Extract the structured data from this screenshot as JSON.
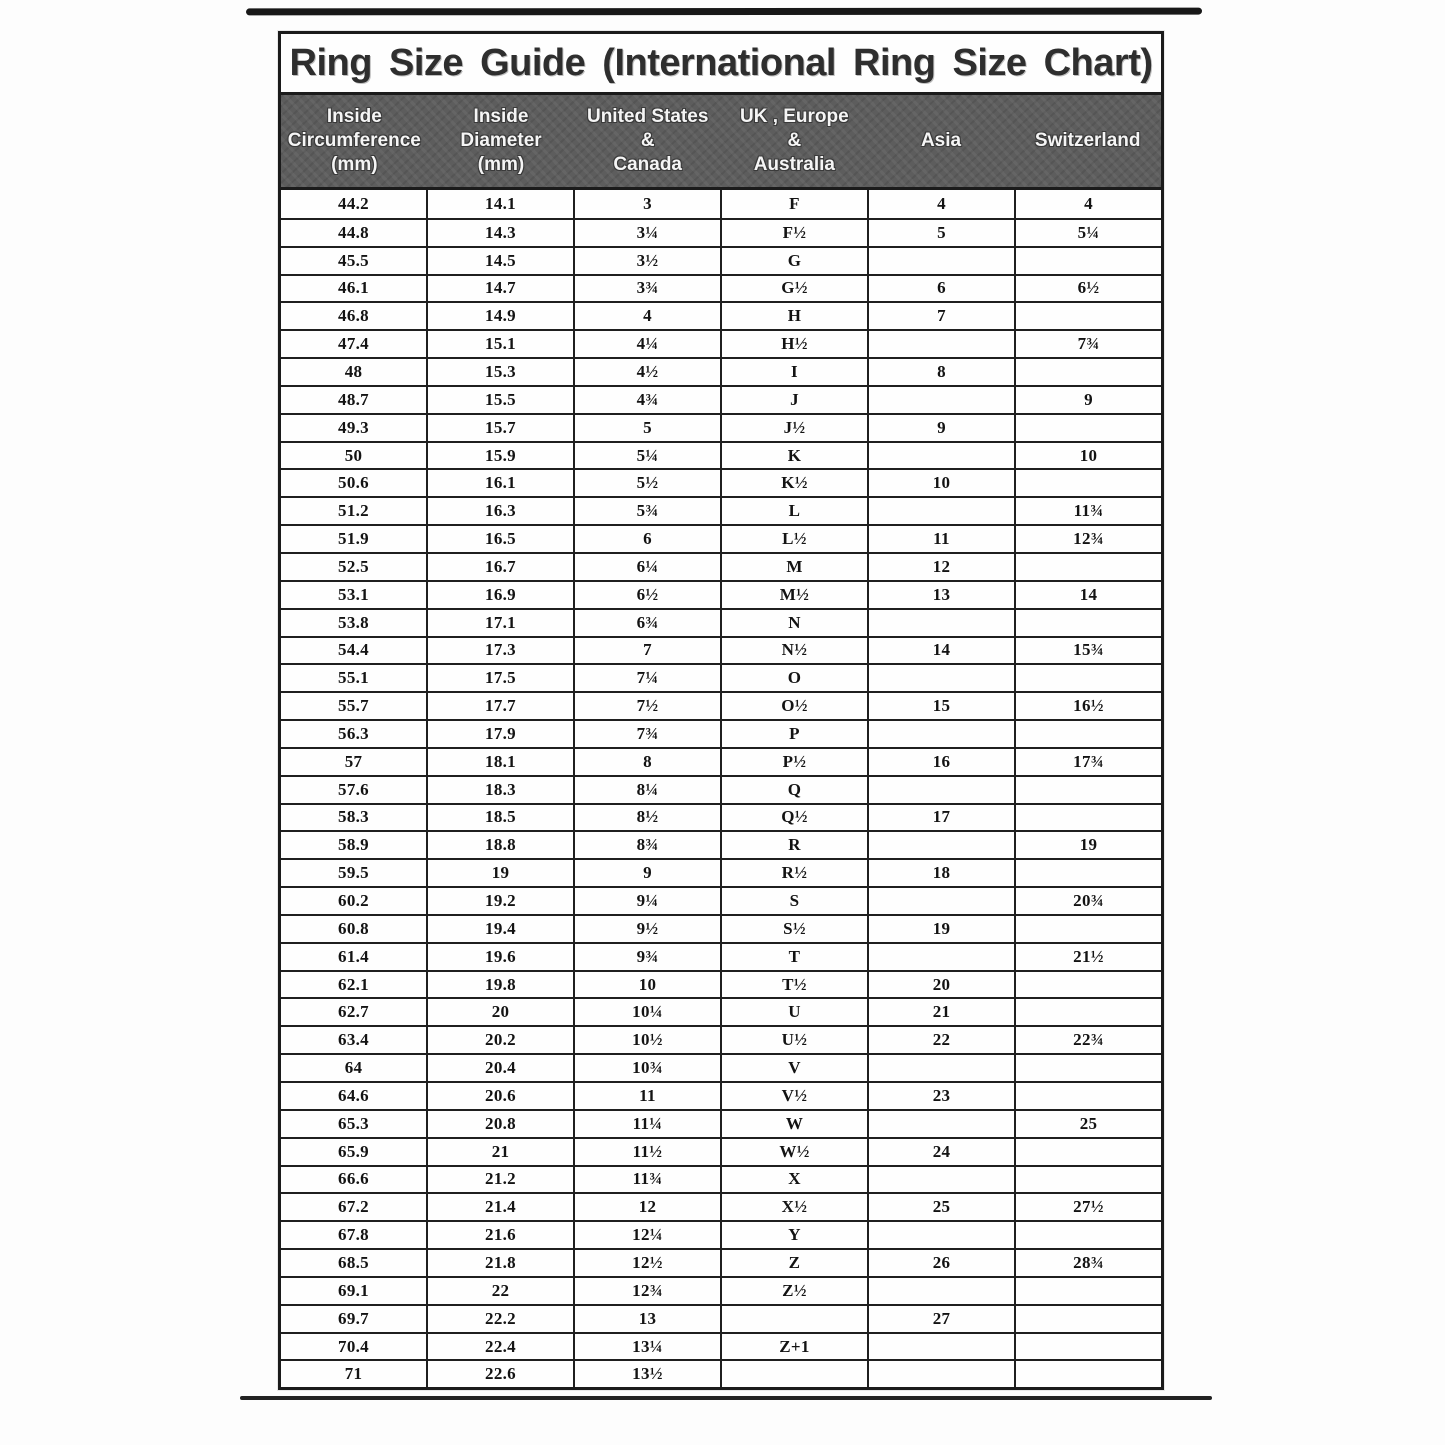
{
  "title": "Ring Size Guide (International Ring Size Chart)",
  "table": {
    "headers": [
      "Inside\nCircumference\n(mm)",
      "Inside\nDiameter\n(mm)",
      "United States\n&\nCanada",
      "UK , Europe\n&\nAustralia",
      "Asia",
      "Switzerland"
    ],
    "rows": [
      [
        "44.2",
        "14.1",
        "3",
        "F",
        "4",
        "4"
      ],
      [
        "44.8",
        "14.3",
        "3¼",
        "F½",
        "5",
        "5¼"
      ],
      [
        "45.5",
        "14.5",
        "3½",
        "G",
        "",
        ""
      ],
      [
        "46.1",
        "14.7",
        "3¾",
        "G½",
        "6",
        "6½"
      ],
      [
        "46.8",
        "14.9",
        "4",
        "H",
        "7",
        ""
      ],
      [
        "47.4",
        "15.1",
        "4¼",
        "H½",
        "",
        "7¾"
      ],
      [
        "48",
        "15.3",
        "4½",
        "I",
        "8",
        ""
      ],
      [
        "48.7",
        "15.5",
        "4¾",
        "J",
        "",
        "9"
      ],
      [
        "49.3",
        "15.7",
        "5",
        "J½",
        "9",
        ""
      ],
      [
        "50",
        "15.9",
        "5¼",
        "K",
        "",
        "10"
      ],
      [
        "50.6",
        "16.1",
        "5½",
        "K½",
        "10",
        ""
      ],
      [
        "51.2",
        "16.3",
        "5¾",
        "L",
        "",
        "11¾"
      ],
      [
        "51.9",
        "16.5",
        "6",
        "L½",
        "11",
        "12¾"
      ],
      [
        "52.5",
        "16.7",
        "6¼",
        "M",
        "12",
        ""
      ],
      [
        "53.1",
        "16.9",
        "6½",
        "M½",
        "13",
        "14"
      ],
      [
        "53.8",
        "17.1",
        "6¾",
        "N",
        "",
        ""
      ],
      [
        "54.4",
        "17.3",
        "7",
        "N½",
        "14",
        "15¾"
      ],
      [
        "55.1",
        "17.5",
        "7¼",
        "O",
        "",
        ""
      ],
      [
        "55.7",
        "17.7",
        "7½",
        "O½",
        "15",
        "16½"
      ],
      [
        "56.3",
        "17.9",
        "7¾",
        "P",
        "",
        ""
      ],
      [
        "57",
        "18.1",
        "8",
        "P½",
        "16",
        "17¾"
      ],
      [
        "57.6",
        "18.3",
        "8¼",
        "Q",
        "",
        ""
      ],
      [
        "58.3",
        "18.5",
        "8½",
        "Q½",
        "17",
        ""
      ],
      [
        "58.9",
        "18.8",
        "8¾",
        "R",
        "",
        "19"
      ],
      [
        "59.5",
        "19",
        "9",
        "R½",
        "18",
        ""
      ],
      [
        "60.2",
        "19.2",
        "9¼",
        "S",
        "",
        "20¾"
      ],
      [
        "60.8",
        "19.4",
        "9½",
        "S½",
        "19",
        ""
      ],
      [
        "61.4",
        "19.6",
        "9¾",
        "T",
        "",
        "21½"
      ],
      [
        "62.1",
        "19.8",
        "10",
        "T½",
        "20",
        ""
      ],
      [
        "62.7",
        "20",
        "10¼",
        "U",
        "21",
        ""
      ],
      [
        "63.4",
        "20.2",
        "10½",
        "U½",
        "22",
        "22¾"
      ],
      [
        "64",
        "20.4",
        "10¾",
        "V",
        "",
        ""
      ],
      [
        "64.6",
        "20.6",
        "11",
        "V½",
        "23",
        ""
      ],
      [
        "65.3",
        "20.8",
        "11¼",
        "W",
        "",
        "25"
      ],
      [
        "65.9",
        "21",
        "11½",
        "W½",
        "24",
        ""
      ],
      [
        "66.6",
        "21.2",
        "11¾",
        "X",
        "",
        ""
      ],
      [
        "67.2",
        "21.4",
        "12",
        "X½",
        "25",
        "27½"
      ],
      [
        "67.8",
        "21.6",
        "12¼",
        "Y",
        "",
        ""
      ],
      [
        "68.5",
        "21.8",
        "12½",
        "Z",
        "26",
        "28¾"
      ],
      [
        "69.1",
        "22",
        "12¾",
        "Z½",
        "",
        ""
      ],
      [
        "69.7",
        "22.2",
        "13",
        "",
        "27",
        ""
      ],
      [
        "70.4",
        "22.4",
        "13¼",
        "Z+1",
        "",
        ""
      ],
      [
        "71",
        "22.6",
        "13½",
        "",
        "",
        ""
      ]
    ]
  }
}
